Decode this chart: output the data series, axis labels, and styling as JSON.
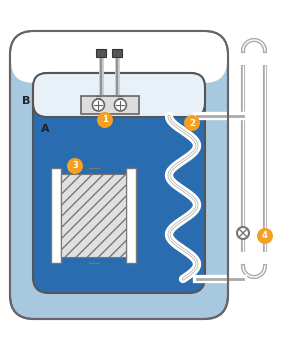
{
  "bg_color": "#ffffff",
  "outer_tank_color_light": "#cce0f0",
  "outer_tank_color_blue": "#a8c8e0",
  "outer_tank_edge": "#666666",
  "inner_tank_color": "#2a6cb0",
  "inner_tank_edge": "#555555",
  "inner_tank_top_color": "#ddeeff",
  "label_A": "A",
  "label_B": "B",
  "badge_color": "#f5a020",
  "badge_text_color": "#ffffff",
  "badge_fontsize": 6,
  "label_fontsize": 8,
  "pipe_color": "#999999",
  "pipe_lw": 1.8,
  "pipe_outer_lw": 3.5,
  "pipe_outer_color": "#bbbbbb"
}
